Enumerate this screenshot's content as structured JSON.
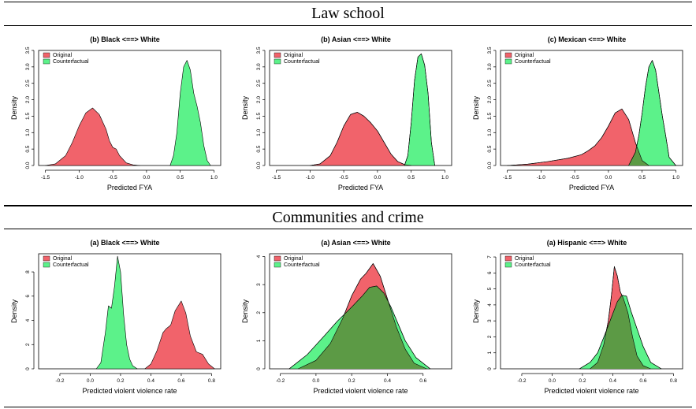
{
  "sections": [
    {
      "title": "Law school"
    },
    {
      "title": "Communities and crime"
    }
  ],
  "colors": {
    "original": "#f1636b",
    "counterfactual": "#5cf28a",
    "overlap": "#5c9a45"
  },
  "chart_data": [
    {
      "type": "area",
      "title": "(b) Black <==> White",
      "xlabel": "Predicted FYA",
      "ylabel": "Density",
      "xlim": [
        -1.6,
        1.1
      ],
      "ylim": [
        0,
        3.5
      ],
      "xticks": [
        -1.5,
        -1.0,
        -0.5,
        0.0,
        0.5,
        1.0
      ],
      "xtick_labels": [
        "-1.5",
        "-1.0",
        "-0.5",
        "0.0",
        "0.5",
        "1.0"
      ],
      "yticks": [
        0,
        0.5,
        1,
        1.5,
        2,
        2.5,
        3,
        3.5
      ],
      "ytick_labels": [
        "0.0",
        "0.5",
        "1.0",
        "1.5",
        "2.0",
        "2.5",
        "3.0",
        "3.5"
      ],
      "legend": {
        "position": "top-left",
        "entries": [
          "Original",
          "Counterfactual"
        ]
      },
      "series": [
        {
          "name": "Original",
          "x": [
            -1.5,
            -1.35,
            -1.2,
            -1.1,
            -1.0,
            -0.9,
            -0.8,
            -0.7,
            -0.6,
            -0.55,
            -0.5,
            -0.45,
            -0.4,
            -0.3,
            -0.2,
            -0.1
          ],
          "y": [
            0.0,
            0.05,
            0.3,
            0.7,
            1.2,
            1.6,
            1.75,
            1.55,
            1.1,
            0.75,
            0.55,
            0.5,
            0.3,
            0.08,
            0.02,
            0.0
          ]
        },
        {
          "name": "Counterfactual",
          "x": [
            0.35,
            0.4,
            0.45,
            0.5,
            0.55,
            0.6,
            0.65,
            0.7,
            0.75,
            0.8,
            0.85,
            0.9,
            0.95
          ],
          "y": [
            0.0,
            0.3,
            1.0,
            2.2,
            3.0,
            3.2,
            2.9,
            2.2,
            1.8,
            1.3,
            0.6,
            0.15,
            0.0
          ]
        }
      ]
    },
    {
      "type": "area",
      "title": "(b) Asian <==> White",
      "xlabel": "Predicted FYA",
      "ylabel": "Density",
      "xlim": [
        -1.6,
        1.1
      ],
      "ylim": [
        0,
        3.5
      ],
      "xticks": [
        -1.5,
        -1.0,
        -0.5,
        0.0,
        0.5,
        1.0
      ],
      "xtick_labels": [
        "-1.5",
        "-1.0",
        "-0.5",
        "0.0",
        "0.5",
        "1.0"
      ],
      "yticks": [
        0,
        0.5,
        1,
        1.5,
        2,
        2.5,
        3,
        3.5
      ],
      "ytick_labels": [
        "0.0",
        "0.5",
        "1.0",
        "1.5",
        "2.0",
        "2.5",
        "3.0",
        "3.5"
      ],
      "legend": {
        "position": "top-left",
        "entries": [
          "Original",
          "Counterfactual"
        ]
      },
      "series": [
        {
          "name": "Original",
          "x": [
            -1.0,
            -0.85,
            -0.7,
            -0.6,
            -0.5,
            -0.4,
            -0.3,
            -0.2,
            -0.1,
            0.0,
            0.1,
            0.2,
            0.3,
            0.4,
            0.5
          ],
          "y": [
            0.0,
            0.05,
            0.3,
            0.7,
            1.2,
            1.55,
            1.62,
            1.5,
            1.3,
            1.05,
            0.7,
            0.35,
            0.12,
            0.03,
            0.0
          ]
        },
        {
          "name": "Counterfactual",
          "x": [
            0.4,
            0.45,
            0.5,
            0.55,
            0.6,
            0.65,
            0.7,
            0.75,
            0.8,
            0.85
          ],
          "y": [
            0.0,
            0.3,
            1.3,
            2.6,
            3.3,
            3.4,
            3.05,
            2.2,
            0.7,
            0.0
          ]
        }
      ]
    },
    {
      "type": "area",
      "title": "(c) Mexican <==> White",
      "xlabel": "Predicted FYA",
      "ylabel": "Density",
      "xlim": [
        -1.6,
        1.1
      ],
      "ylim": [
        0,
        3.5
      ],
      "xticks": [
        -1.5,
        -1.0,
        -0.5,
        0.0,
        0.5,
        1.0
      ],
      "xtick_labels": [
        "-1.5",
        "-1.0",
        "-0.5",
        "0.0",
        "0.5",
        "1.0"
      ],
      "yticks": [
        0,
        0.5,
        1,
        1.5,
        2,
        2.5,
        3,
        3.5
      ],
      "ytick_labels": [
        "0.0",
        "0.5",
        "1.0",
        "1.5",
        "2.0",
        "2.5",
        "3.0",
        "3.5"
      ],
      "legend": {
        "position": "top-left",
        "entries": [
          "Original",
          "Counterfactual"
        ]
      },
      "series": [
        {
          "name": "Original",
          "x": [
            -1.5,
            -1.2,
            -0.9,
            -0.6,
            -0.4,
            -0.3,
            -0.2,
            -0.1,
            0.0,
            0.1,
            0.2,
            0.3,
            0.4,
            0.5,
            0.6
          ],
          "y": [
            0.0,
            0.04,
            0.12,
            0.22,
            0.33,
            0.45,
            0.6,
            0.85,
            1.2,
            1.6,
            1.72,
            1.4,
            0.7,
            0.15,
            0.0
          ]
        },
        {
          "name": "Counterfactual",
          "x": [
            0.3,
            0.4,
            0.45,
            0.5,
            0.55,
            0.6,
            0.65,
            0.7,
            0.75,
            0.8,
            0.85,
            0.9,
            1.0
          ],
          "y": [
            0.0,
            0.4,
            0.9,
            1.6,
            2.4,
            3.0,
            3.2,
            2.9,
            2.2,
            1.5,
            0.9,
            0.25,
            0.0
          ]
        }
      ]
    },
    {
      "type": "area",
      "title": "(a) Black <==> White",
      "xlabel": "Predicted violent violence rate",
      "ylabel": "Density",
      "xlim": [
        -0.34,
        0.86
      ],
      "ylim": [
        0,
        9.5
      ],
      "xticks": [
        -0.2,
        0.0,
        0.2,
        0.4,
        0.6,
        0.8
      ],
      "xtick_labels": [
        "-0.2",
        "0.0",
        "0.2",
        "0.4",
        "0.6",
        "0.8"
      ],
      "yticks": [
        0,
        2,
        4,
        6,
        8
      ],
      "ytick_labels": [
        "0",
        "2",
        "4",
        "6",
        "8"
      ],
      "legend": {
        "position": "top-left",
        "entries": [
          "Original",
          "Counterfactual"
        ]
      },
      "series": [
        {
          "name": "Original",
          "x": [
            0.36,
            0.4,
            0.44,
            0.48,
            0.5,
            0.53,
            0.56,
            0.6,
            0.63,
            0.66,
            0.7,
            0.74,
            0.78,
            0.82
          ],
          "y": [
            0.0,
            0.4,
            1.5,
            3.0,
            3.3,
            3.6,
            4.8,
            5.6,
            4.6,
            2.7,
            1.4,
            1.2,
            0.4,
            0.0
          ]
        },
        {
          "name": "Counterfactual",
          "x": [
            0.04,
            0.07,
            0.1,
            0.12,
            0.14,
            0.16,
            0.18,
            0.2,
            0.22,
            0.24,
            0.26,
            0.28,
            0.31
          ],
          "y": [
            0.0,
            0.5,
            3.0,
            5.2,
            5.0,
            6.8,
            9.3,
            8.0,
            4.5,
            2.0,
            0.8,
            0.25,
            0.0
          ]
        }
      ]
    },
    {
      "type": "area",
      "title": "(a) Asian <==> White",
      "xlabel": "Predicted violent violence rate",
      "ylabel": "Density",
      "xlim": [
        -0.26,
        0.76
      ],
      "ylim": [
        0,
        4.1
      ],
      "xticks": [
        -0.2,
        0.0,
        0.2,
        0.4,
        0.6
      ],
      "xtick_labels": [
        "-0.2",
        "0.0",
        "0.2",
        "0.4",
        "0.6"
      ],
      "yticks": [
        0,
        1,
        2,
        3,
        4
      ],
      "ytick_labels": [
        "0",
        "1",
        "2",
        "3",
        "4"
      ],
      "legend": {
        "position": "top-left",
        "entries": [
          "Original",
          "Counterfactual"
        ]
      },
      "series": [
        {
          "name": "Original",
          "x": [
            -0.1,
            0.0,
            0.08,
            0.15,
            0.2,
            0.25,
            0.28,
            0.32,
            0.36,
            0.4,
            0.45,
            0.5,
            0.55,
            0.62
          ],
          "y": [
            0.0,
            0.3,
            0.9,
            1.8,
            2.6,
            3.2,
            3.4,
            3.75,
            3.3,
            2.5,
            1.5,
            0.7,
            0.2,
            0.0
          ]
        },
        {
          "name": "Counterfactual",
          "x": [
            -0.15,
            -0.05,
            0.05,
            0.12,
            0.2,
            0.26,
            0.3,
            0.34,
            0.38,
            0.42,
            0.46,
            0.5,
            0.56,
            0.64
          ],
          "y": [
            0.0,
            0.5,
            1.2,
            1.7,
            2.2,
            2.6,
            2.9,
            2.95,
            2.7,
            2.2,
            1.6,
            1.0,
            0.4,
            0.0
          ]
        }
      ]
    },
    {
      "type": "area",
      "title": "(a) Hispanic <==> White",
      "xlabel": "Predicted violent violence rate",
      "ylabel": "Density",
      "xlim": [
        -0.34,
        0.86
      ],
      "ylim": [
        0,
        7.2
      ],
      "xticks": [
        -0.2,
        0.0,
        0.2,
        0.4,
        0.6,
        0.8
      ],
      "xtick_labels": [
        "-0.2",
        "0.0",
        "0.2",
        "0.4",
        "0.6",
        "0.8"
      ],
      "yticks": [
        0,
        1,
        2,
        3,
        4,
        5,
        6,
        7
      ],
      "ytick_labels": [
        "0",
        "1",
        "2",
        "3",
        "4",
        "5",
        "6",
        "7"
      ],
      "legend": {
        "position": "top-left",
        "entries": [
          "Original",
          "Counterfactual"
        ]
      },
      "series": [
        {
          "name": "Original",
          "x": [
            0.25,
            0.3,
            0.34,
            0.37,
            0.39,
            0.41,
            0.43,
            0.45,
            0.47,
            0.5,
            0.53,
            0.56,
            0.6,
            0.65
          ],
          "y": [
            0.0,
            0.4,
            1.5,
            3.0,
            4.5,
            6.4,
            5.8,
            4.8,
            4.4,
            3.5,
            2.0,
            0.8,
            0.2,
            0.0
          ]
        },
        {
          "name": "Counterfactual",
          "x": [
            0.18,
            0.25,
            0.3,
            0.35,
            0.39,
            0.43,
            0.46,
            0.49,
            0.52,
            0.56,
            0.6,
            0.65,
            0.72
          ],
          "y": [
            0.0,
            0.4,
            1.0,
            2.2,
            3.2,
            4.2,
            4.6,
            4.55,
            3.6,
            2.5,
            1.4,
            0.4,
            0.0
          ]
        }
      ]
    }
  ]
}
